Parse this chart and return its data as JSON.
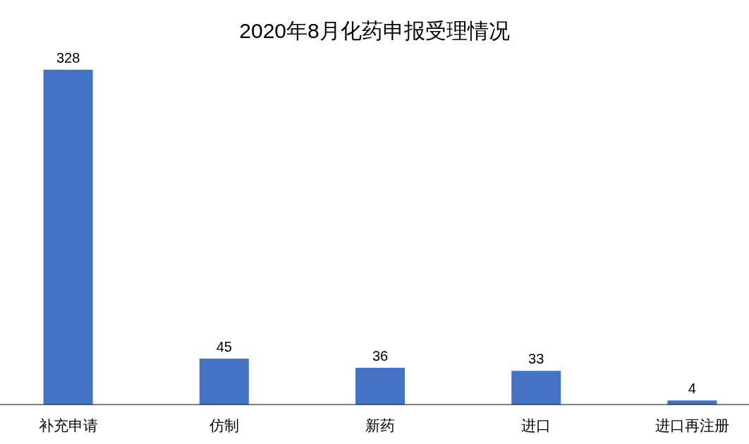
{
  "chart_data": {
    "type": "bar",
    "title": "2020年8月化药申报受理情况",
    "categories": [
      "补充申请",
      "仿制",
      "新药",
      "进口",
      "进口再注册"
    ],
    "values": [
      328,
      45,
      36,
      33,
      4
    ],
    "color": "#4472c4",
    "data_labels": true
  }
}
